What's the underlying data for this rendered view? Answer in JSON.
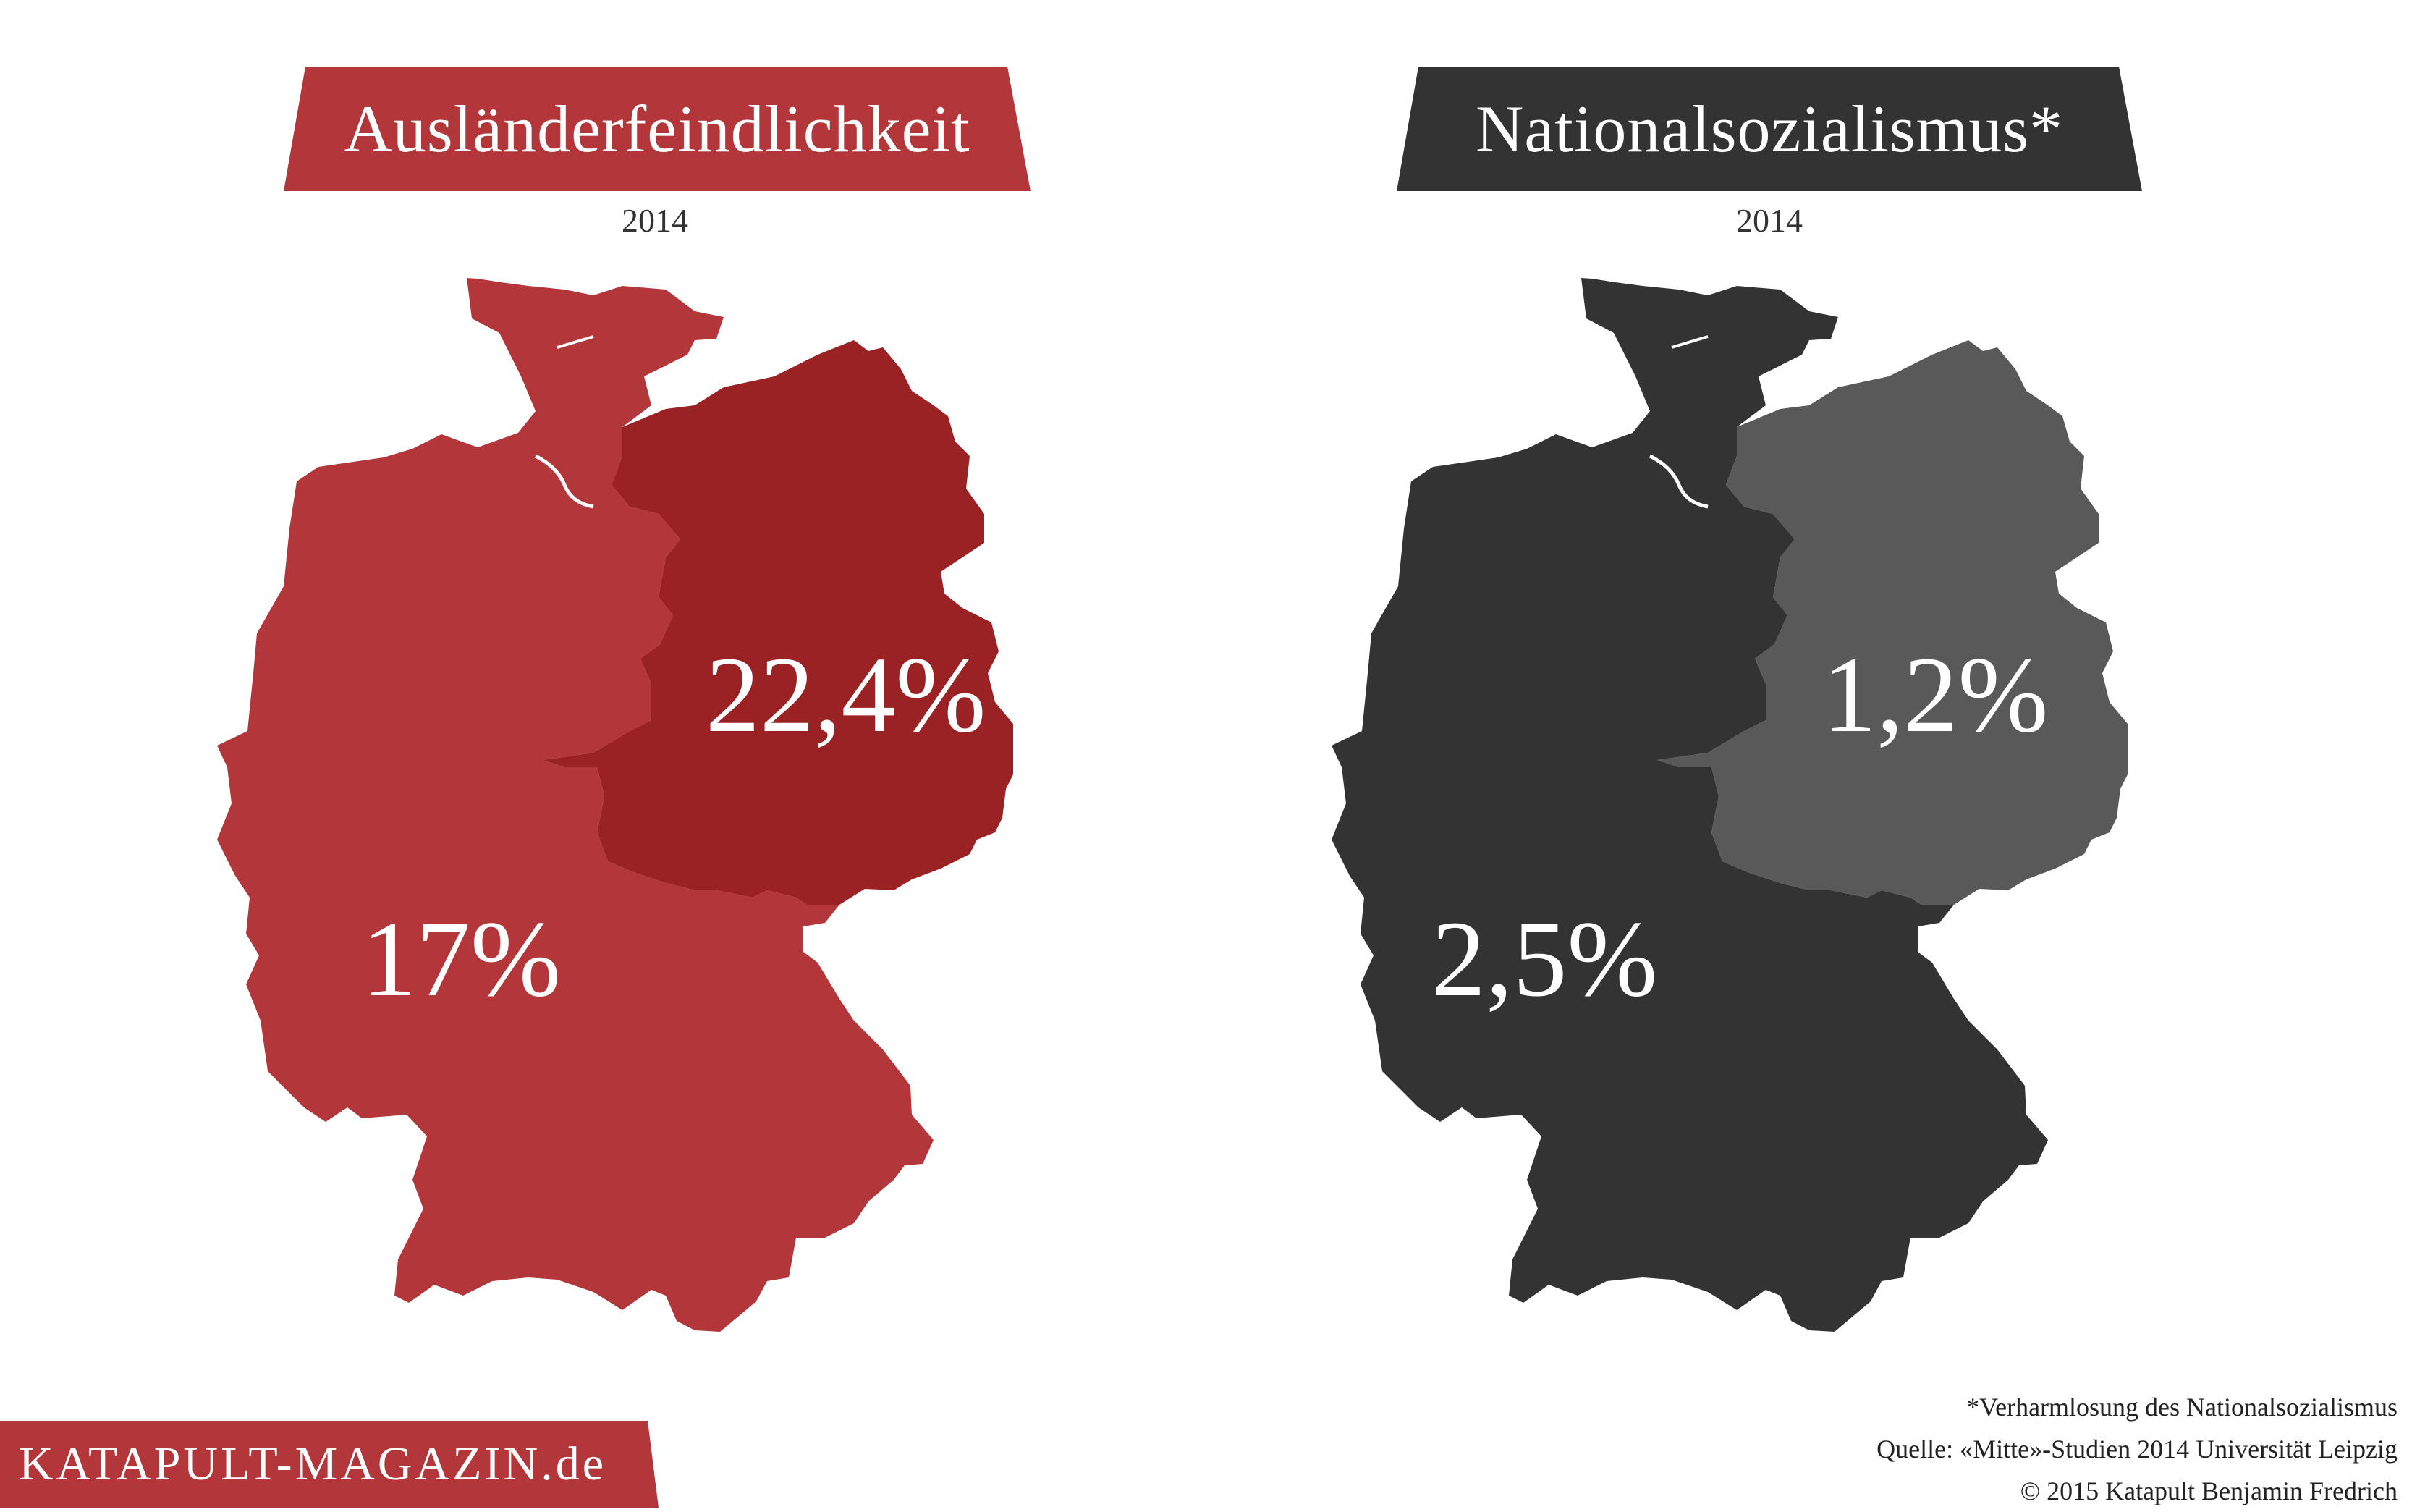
{
  "maps": [
    {
      "title": "Ausländerfeindlichkeit",
      "year": "2014",
      "west": {
        "value": "17%"
      },
      "east": {
        "value": "22,4%"
      },
      "colors": {
        "banner": "#b3373a",
        "west": "#b3373a",
        "east": "#9a2124"
      }
    },
    {
      "title": "Nationalsozialismus*",
      "year": "2014",
      "west": {
        "value": "2,5%"
      },
      "east": {
        "value": "1,2%"
      },
      "colors": {
        "banner": "#333333",
        "west": "#333333",
        "east": "#595959"
      }
    }
  ],
  "notes": {
    "footnote": "*Verharmlosung des Nationalsozialismus",
    "source": "Quelle: «Mitte»-Studien 2014 Universität Leipzig",
    "copyright": "© 2015 Katapult Benjamin Fredrich"
  },
  "brand": {
    "label": "KATAPULT-MAGAZIN.de",
    "color": "#b3373a"
  }
}
